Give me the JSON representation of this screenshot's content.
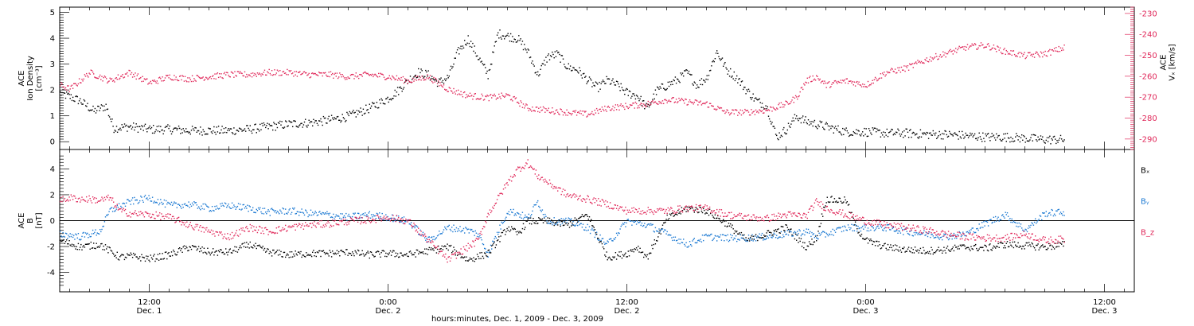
{
  "figure": {
    "xlabel": "hours:minutes, Dec. 1, 2009 - Dec. 3, 2009",
    "x_ticks": [
      {
        "hours": 12,
        "time": "12:00",
        "day": "Dec. 1"
      },
      {
        "hours": 24,
        "time": "0:00",
        "day": "Dec. 2"
      },
      {
        "hours": 36,
        "time": "12:00",
        "day": "Dec. 2"
      },
      {
        "hours": 48,
        "time": "0:00",
        "day": "Dec. 3"
      },
      {
        "hours": 60,
        "time": "12:00",
        "day": "Dec. 3"
      }
    ],
    "x_range_hours": [
      7.5,
      61.5
    ]
  },
  "colors": {
    "black": "#000000",
    "pink": "#e0285a",
    "blue": "#1a78d2"
  },
  "chart_data": [
    {
      "type": "scatter",
      "panel": "top",
      "ylabel": [
        "ACE",
        "Ion Density",
        "[cm⁻³]"
      ],
      "ylim": [
        -0.3,
        5.2
      ],
      "y_ticks": [
        0,
        1,
        2,
        3,
        4,
        5
      ],
      "right_axis": {
        "label": [
          "ACE",
          "Vₓ [km/s]"
        ],
        "ylim": [
          -295,
          -227
        ],
        "ticks": [
          -230,
          -240,
          -250,
          -260,
          -270,
          -280,
          -290
        ]
      },
      "series": [
        {
          "color": "black",
          "axis": "left",
          "x": [
            7.5,
            8.5,
            9.2,
            9.8,
            10.2,
            11,
            12,
            13,
            14,
            15,
            16,
            17,
            18,
            19,
            20,
            21,
            22,
            23,
            23.5,
            24,
            24.5,
            25,
            25.5,
            26,
            26.5,
            27,
            27.5,
            28,
            28.5,
            29,
            29.5,
            30,
            30.5,
            31,
            31.5,
            32,
            32.5,
            33,
            33.5,
            34,
            34.5,
            35,
            35.5,
            36,
            36.5,
            37,
            37.5,
            38,
            38.5,
            39,
            39.5,
            40,
            40.5,
            41,
            41.5,
            42,
            42.5,
            43,
            43.5,
            44,
            44.5,
            45,
            46,
            47,
            48,
            49,
            50,
            51,
            52,
            53,
            54,
            55,
            56,
            57,
            58
          ],
          "y": [
            1.9,
            1.6,
            1.2,
            1.4,
            0.55,
            0.6,
            0.5,
            0.5,
            0.45,
            0.45,
            0.45,
            0.5,
            0.6,
            0.7,
            0.75,
            0.85,
            1.0,
            1.3,
            1.5,
            1.7,
            2.0,
            2.4,
            2.7,
            2.6,
            2.3,
            2.5,
            3.5,
            4.0,
            3.3,
            2.6,
            4.2,
            4.1,
            4.0,
            3.5,
            2.6,
            3.3,
            3.4,
            2.9,
            2.8,
            2.4,
            2.1,
            2.4,
            2.2,
            1.9,
            1.8,
            1.3,
            2.0,
            2.2,
            2.4,
            2.7,
            2.2,
            2.5,
            3.5,
            2.8,
            2.5,
            2.0,
            1.6,
            1.4,
            0.2,
            0.5,
            1.0,
            0.8,
            0.6,
            0.4,
            0.4,
            0.35,
            0.35,
            0.3,
            0.3,
            0.25,
            0.2,
            0.2,
            0.15,
            0.1,
            0.1
          ]
        },
        {
          "color": "pink",
          "axis": "right",
          "x": [
            7.5,
            8,
            8.5,
            9,
            9.5,
            10,
            11,
            12,
            13,
            14,
            15,
            16,
            17,
            18,
            19,
            20,
            21,
            22,
            23,
            24,
            25,
            26,
            27,
            28,
            29,
            30,
            31,
            32,
            33,
            34,
            35,
            36,
            37,
            38,
            39,
            40,
            41,
            42,
            43,
            44,
            44.5,
            45,
            45.5,
            46,
            47,
            48,
            49,
            50,
            51,
            52,
            53,
            54,
            55,
            56,
            57,
            58
          ],
          "y": [
            -264,
            -266,
            -262,
            -258,
            -260,
            -262,
            -258,
            -263,
            -260,
            -261,
            -260,
            -259,
            -259,
            -258,
            -258,
            -259,
            -259,
            -260,
            -259,
            -260,
            -262,
            -260,
            -266,
            -269,
            -270,
            -269,
            -275,
            -276,
            -277,
            -278,
            -275,
            -274,
            -273,
            -271,
            -272,
            -273,
            -277,
            -277,
            -276,
            -273,
            -270,
            -262,
            -260,
            -264,
            -262,
            -264,
            -258,
            -256,
            -252,
            -249,
            -246,
            -245,
            -248,
            -250,
            -249,
            -246
          ]
        }
      ]
    },
    {
      "type": "scatter",
      "panel": "bottom",
      "ylabel": [
        "ACE",
        "B",
        "[nT]"
      ],
      "ylim": [
        -5.5,
        5.5
      ],
      "y_ticks": [
        -4,
        -2,
        0,
        2,
        4
      ],
      "legend": [
        {
          "label": "Bₓ",
          "color": "black"
        },
        {
          "label": "Bᵧ",
          "color": "blue"
        },
        {
          "label": "B_z",
          "color": "pink"
        }
      ],
      "series": [
        {
          "name": "Bx",
          "color": "black",
          "x": [
            7.5,
            8.5,
            9.5,
            10.5,
            11,
            12,
            13,
            14,
            15,
            16,
            17,
            18,
            19,
            20,
            21,
            22,
            23,
            24,
            25,
            26,
            27,
            28,
            29,
            30,
            30.5,
            31,
            32,
            33,
            34,
            35,
            36,
            36.5,
            37,
            38,
            39,
            40,
            41,
            42,
            43,
            44,
            45,
            45.5,
            46,
            46.5,
            47,
            47.5,
            48,
            49,
            50,
            51,
            52,
            53,
            54,
            55,
            56,
            57,
            58
          ],
          "y": [
            -1.5,
            -2.0,
            -1.8,
            -2.8,
            -2.7,
            -2.9,
            -2.6,
            -2.0,
            -2.4,
            -2.4,
            -1.8,
            -2.4,
            -2.6,
            -2.5,
            -2.5,
            -2.4,
            -2.6,
            -2.5,
            -2.6,
            -2.3,
            -2.0,
            -3.0,
            -2.5,
            -0.5,
            -1.0,
            0.0,
            0.0,
            -0.3,
            0.5,
            -2.8,
            -2.5,
            -2.0,
            -2.8,
            0.2,
            1.0,
            0.8,
            -0.2,
            -1.5,
            -1.0,
            -0.5,
            -2.0,
            -1.3,
            1.7,
            1.6,
            1.6,
            -0.5,
            -1.5,
            -2.0,
            -2.2,
            -2.3,
            -2.2,
            -2.0,
            -2.1,
            -1.8,
            -1.9,
            -2.0,
            -1.8
          ]
        },
        {
          "name": "By",
          "color": "blue",
          "x": [
            7.5,
            8.5,
            9.5,
            10,
            11,
            12,
            13,
            14,
            15,
            16,
            17,
            18,
            19,
            20,
            21,
            22,
            23,
            24,
            25,
            26,
            27,
            28,
            28.5,
            29,
            30,
            30.5,
            31,
            31.5,
            32,
            33,
            34,
            35,
            36,
            37,
            38,
            39,
            40,
            41,
            42,
            43,
            44,
            45,
            45.5,
            46,
            47,
            48,
            49,
            50,
            51,
            52,
            53,
            54,
            55,
            56,
            57,
            58
          ],
          "y": [
            -1.0,
            -1.2,
            -0.8,
            0.8,
            1.5,
            1.8,
            1.2,
            1.3,
            1.0,
            1.2,
            1.0,
            0.7,
            0.8,
            0.6,
            0.5,
            0.3,
            0.5,
            0.3,
            0.0,
            -1.5,
            -0.5,
            -0.7,
            -1.0,
            -2.5,
            0.8,
            0.6,
            0.2,
            1.5,
            0.0,
            0.0,
            -0.5,
            -1.8,
            0.0,
            -0.3,
            -1.0,
            -1.8,
            -1.2,
            -1.3,
            -1.3,
            -1.2,
            -1.0,
            -0.8,
            -1.2,
            -1.0,
            -0.5,
            -0.5,
            -0.5,
            -0.8,
            -1.0,
            -1.2,
            -1.0,
            -0.2,
            0.5,
            -0.7,
            0.6,
            0.7
          ]
        },
        {
          "name": "Bz",
          "color": "pink",
          "x": [
            7.5,
            8,
            8.5,
            9,
            9.5,
            10,
            10.5,
            11,
            12,
            13,
            14,
            15,
            16,
            17,
            18,
            19,
            20,
            21,
            22,
            23,
            24,
            25,
            26,
            27,
            28,
            28.5,
            29,
            30,
            30.5,
            31,
            31.5,
            32,
            33,
            34,
            35,
            36,
            37,
            38,
            39,
            40,
            41,
            42,
            43,
            44,
            45,
            45.5,
            46,
            47,
            48,
            49,
            50,
            51,
            52,
            53,
            54,
            55,
            56,
            57,
            58
          ],
          "y": [
            1.6,
            1.8,
            1.7,
            1.7,
            1.6,
            1.8,
            0.8,
            0.6,
            0.5,
            0.3,
            -0.3,
            -0.8,
            -1.2,
            -0.5,
            -0.8,
            -0.5,
            -0.3,
            -0.2,
            0.0,
            0.1,
            0.3,
            0.0,
            -1.5,
            -3.0,
            -2.0,
            -1.5,
            0.5,
            3.0,
            4.0,
            4.5,
            3.5,
            3.0,
            2.0,
            1.7,
            1.3,
            0.8,
            0.8,
            0.8,
            1.0,
            1.0,
            0.5,
            0.3,
            0.2,
            0.5,
            0.4,
            1.5,
            1.0,
            0.5,
            0.0,
            -0.3,
            -0.5,
            -0.7,
            -1.0,
            -1.2,
            -1.3,
            -1.3,
            -1.0,
            -1.5,
            -1.4
          ]
        }
      ]
    }
  ]
}
